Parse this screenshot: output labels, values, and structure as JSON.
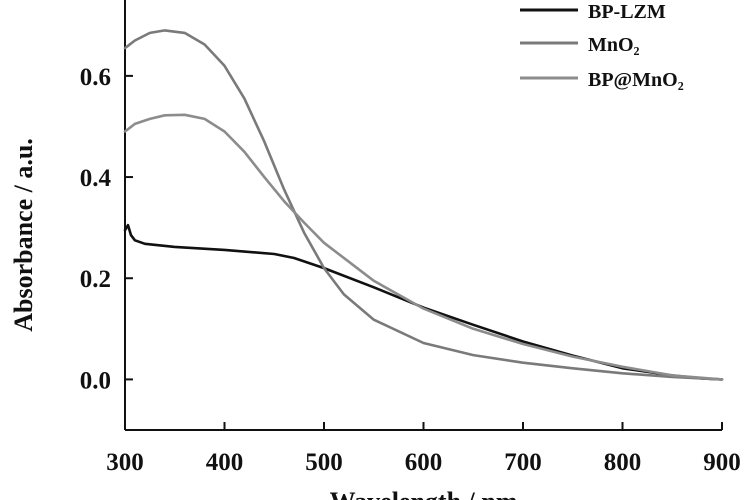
{
  "chart_data": {
    "type": "line",
    "title": "",
    "xlabel": "Wavelength / nm",
    "ylabel": "Absorbance / a.u.",
    "xlim": [
      300,
      900
    ],
    "ylim": [
      -0.1,
      0.75
    ],
    "grid": false,
    "legend_position": "top-right",
    "x_ticks": [
      300,
      400,
      500,
      600,
      700,
      800,
      900
    ],
    "x_tick_labels": [
      "300",
      "400",
      "500",
      "600",
      "700",
      "800",
      "900"
    ],
    "y_ticks": [
      0.0,
      0.2,
      0.4,
      0.6
    ],
    "y_tick_labels": [
      "0.0",
      "0.2",
      "0.4",
      "0.6"
    ],
    "series": [
      {
        "name": "BP-LZM",
        "color": "#111111",
        "x": [
          300,
          303,
          306,
          310,
          320,
          350,
          400,
          450,
          470,
          500,
          550,
          600,
          650,
          700,
          750,
          800,
          850,
          880,
          900
        ],
        "y": [
          0.295,
          0.305,
          0.285,
          0.275,
          0.268,
          0.262,
          0.256,
          0.248,
          0.24,
          0.22,
          0.182,
          0.142,
          0.108,
          0.075,
          0.047,
          0.022,
          0.008,
          0.002,
          0.0
        ]
      },
      {
        "name": "MnO₂",
        "color": "#7a7a7a",
        "x": [
          300,
          310,
          325,
          340,
          360,
          380,
          400,
          420,
          440,
          460,
          480,
          500,
          520,
          550,
          600,
          650,
          700,
          750,
          800,
          850,
          900
        ],
        "y": [
          0.655,
          0.67,
          0.685,
          0.69,
          0.685,
          0.662,
          0.62,
          0.555,
          0.47,
          0.375,
          0.29,
          0.22,
          0.168,
          0.118,
          0.072,
          0.048,
          0.033,
          0.022,
          0.012,
          0.005,
          0.0
        ]
      },
      {
        "name": "BP@MnO₂",
        "color": "#8c8c8c",
        "x": [
          300,
          310,
          325,
          340,
          360,
          380,
          400,
          420,
          440,
          460,
          480,
          500,
          550,
          600,
          650,
          700,
          750,
          800,
          850,
          900
        ],
        "y": [
          0.49,
          0.505,
          0.515,
          0.522,
          0.523,
          0.515,
          0.49,
          0.45,
          0.4,
          0.352,
          0.31,
          0.27,
          0.195,
          0.14,
          0.1,
          0.07,
          0.045,
          0.025,
          0.008,
          0.0
        ]
      }
    ]
  }
}
